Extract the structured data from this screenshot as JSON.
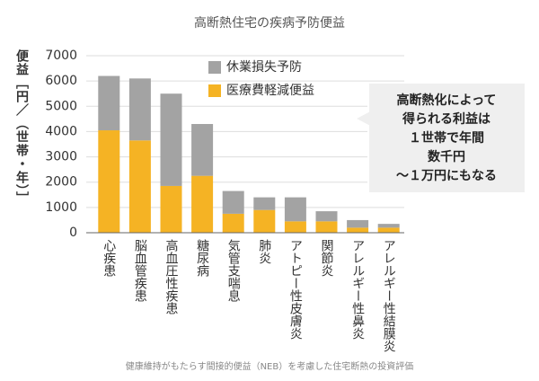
{
  "chart_data": {
    "type": "stacked-bar",
    "title": "高断熱住宅の疾病予防便益",
    "ylabel": "便益［円／（世帯・年）］",
    "categories": [
      "心疾患",
      "脳血管疾患",
      "高血圧性疾患",
      "糖尿病",
      "気管支喘息",
      "肺炎",
      "アトピー性皮膚炎",
      "関節炎",
      "アレルギー性鼻炎",
      "アレルギー性結膜炎"
    ],
    "series": [
      {
        "name": "医療費軽減便益",
        "color": "#f5b324",
        "values": [
          4050,
          3650,
          1850,
          2250,
          750,
          900,
          450,
          450,
          200,
          200
        ]
      },
      {
        "name": "休業損失予防",
        "color": "#a3a3a3",
        "values": [
          2150,
          2450,
          3650,
          2050,
          900,
          500,
          950,
          400,
          300,
          150
        ]
      }
    ],
    "ylim": [
      0,
      7000
    ],
    "yticks": [
      0,
      1000,
      2000,
      3000,
      4000,
      5000,
      6000,
      7000
    ],
    "grid": true,
    "callout": [
      "高断熱化によって",
      "得られる利益は",
      "１世帯で年間",
      "数千円",
      "～１万円にもなる"
    ],
    "note": "健康維持がもたらす間接的便益（NEB）を考慮した住宅断熱の投資評価"
  }
}
